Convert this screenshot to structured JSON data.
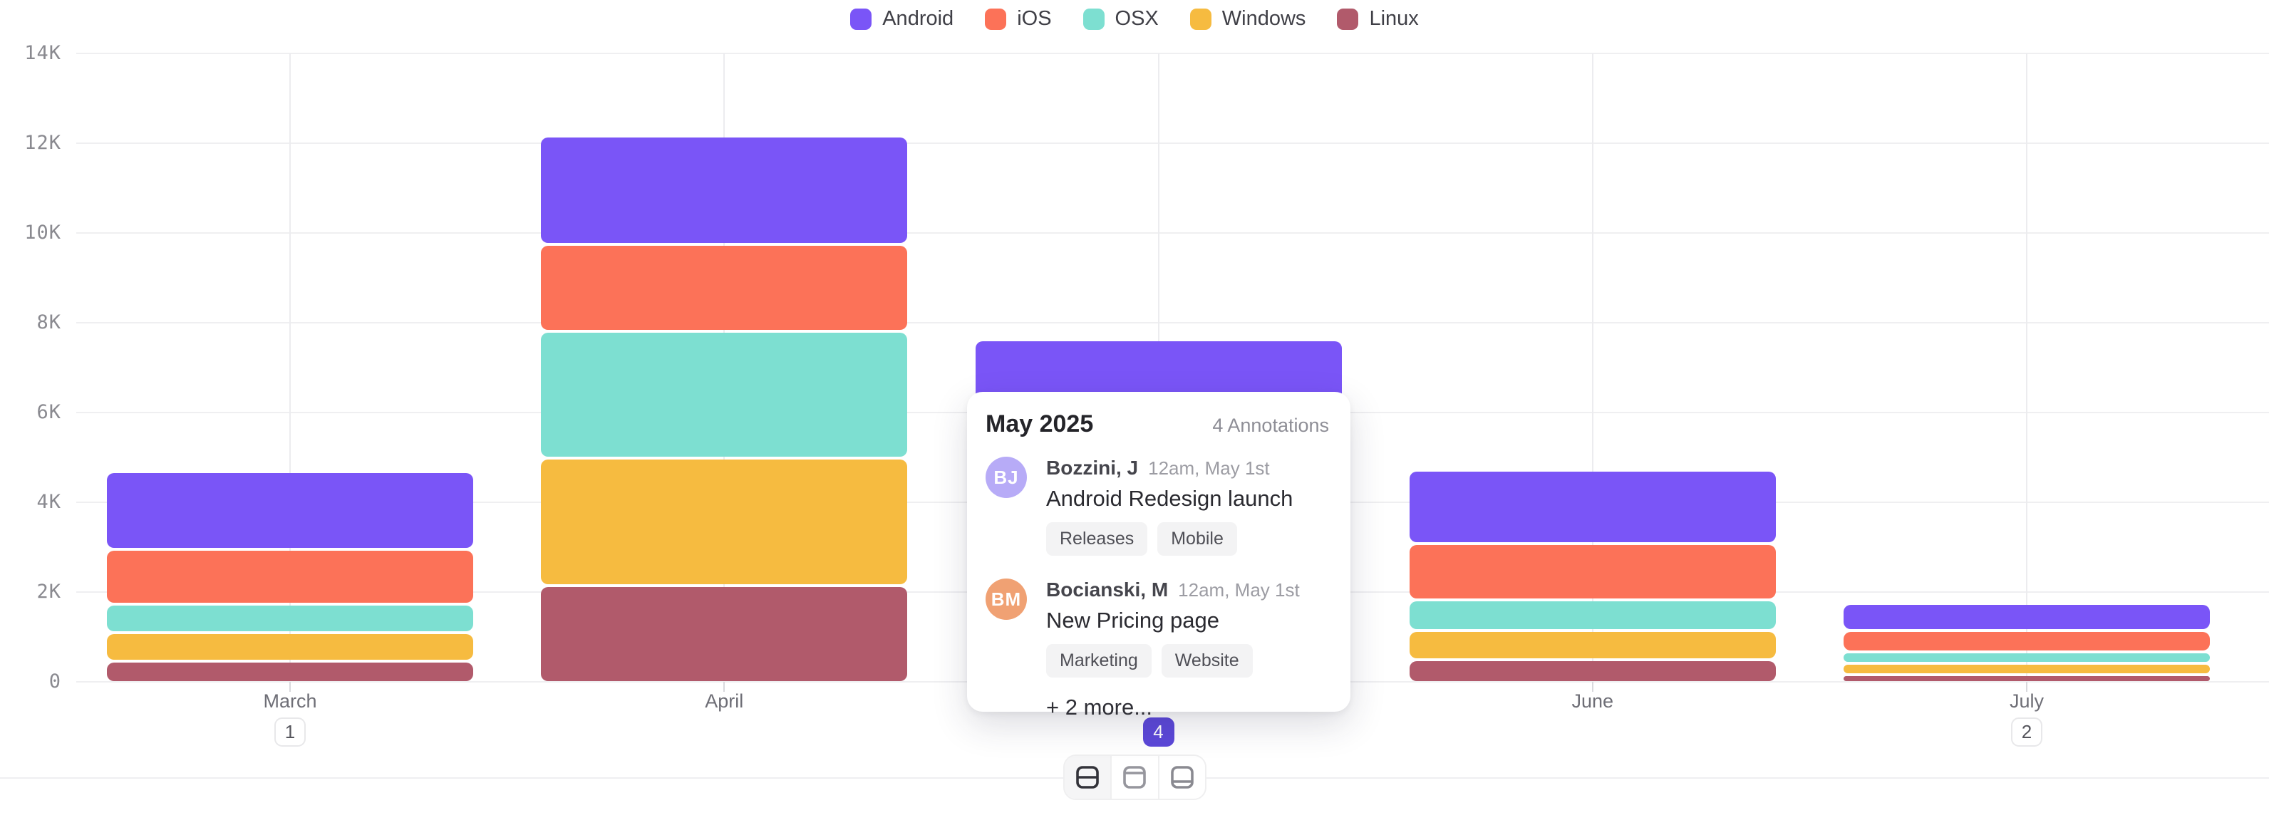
{
  "chart_data": {
    "type": "bar",
    "stacked": true,
    "categories": [
      "March",
      "April",
      "May",
      "June",
      "July"
    ],
    "series": [
      {
        "name": "Android",
        "color": "#7a55f7",
        "values": [
          1730,
          2420,
          2200,
          1640,
          610
        ]
      },
      {
        "name": "iOS",
        "color": "#fc7258",
        "values": [
          1230,
          1940,
          1730,
          1260,
          480
        ]
      },
      {
        "name": "OSX",
        "color": "#7ddfd1",
        "values": [
          640,
          2830,
          1450,
          670,
          240
        ]
      },
      {
        "name": "Windows",
        "color": "#f6bb40",
        "values": [
          630,
          2840,
          1300,
          660,
          260
        ]
      },
      {
        "name": "Linux",
        "color": "#b15a6b",
        "values": [
          420,
          2100,
          900,
          450,
          120
        ]
      }
    ],
    "stack_order_bottom_to_top": [
      "Linux",
      "Windows",
      "OSX",
      "iOS",
      "Android"
    ],
    "y_ticks": [
      "14K",
      "12K",
      "10K",
      "8K",
      "6K",
      "4K",
      "2K",
      "0"
    ],
    "ylim": [
      0,
      14000
    ],
    "grid": true,
    "legend_position": "top",
    "x_axis": [
      {
        "label": "March",
        "badge": "1",
        "badge_active": false
      },
      {
        "label": "April",
        "badge": "",
        "badge_active": false
      },
      {
        "label": "May",
        "badge": "4",
        "badge_active": true
      },
      {
        "label": "June",
        "badge": "",
        "badge_active": false
      },
      {
        "label": "July",
        "badge": "2",
        "badge_active": false
      }
    ]
  },
  "popup": {
    "title": "May 2025",
    "count_label": "4 Annotations",
    "entries": [
      {
        "initials": "BJ",
        "avatar_color": "#b7abf7",
        "author": "Bozzini, J",
        "time": "12am, May 1st",
        "text": "Android Redesign launch",
        "tags": [
          "Releases",
          "Mobile"
        ]
      },
      {
        "initials": "BM",
        "avatar_color": "#f0a173",
        "author": "Bocianski, M",
        "time": "12am, May 1st",
        "text": "New Pricing page",
        "tags": [
          "Marketing",
          "Website"
        ]
      }
    ],
    "more_label": "+ 2 more..."
  },
  "toolbar": {
    "view_buttons": [
      {
        "icon": "row-line-middle-icon",
        "active": true
      },
      {
        "icon": "row-line-top-icon",
        "active": false
      },
      {
        "icon": "row-line-bottom-icon",
        "active": false
      }
    ]
  },
  "colors": {
    "badge_active_bg": "#5c48d9",
    "h_gridline": "#efeff1",
    "v_gridline": "#ececef",
    "icon_active": "#33333a",
    "icon_inactive": "#96969d"
  }
}
